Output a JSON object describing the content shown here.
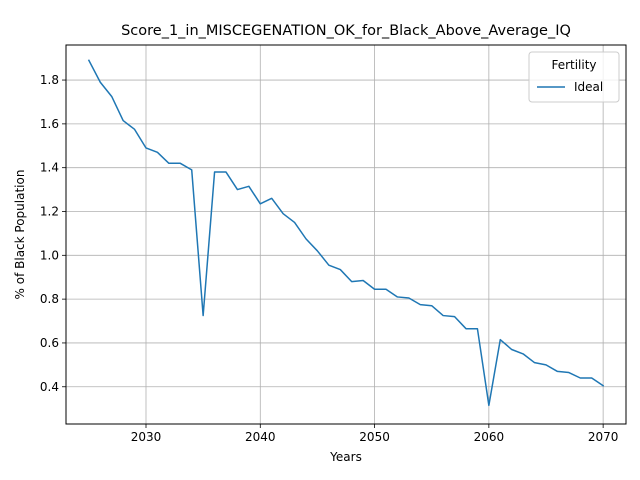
{
  "chart_data": {
    "type": "line",
    "title": "Score_1_in_MISCEGENATION_OK_for_Black_Above_Average_IQ",
    "xlabel": "Years",
    "ylabel": "% of Black Population",
    "xlim": [
      2023,
      2072
    ],
    "ylim": [
      0.23,
      1.96
    ],
    "x_ticks": [
      2030,
      2040,
      2050,
      2060,
      2070
    ],
    "y_ticks": [
      0.4,
      0.6,
      0.8,
      1.0,
      1.2,
      1.4,
      1.6,
      1.8
    ],
    "grid": true,
    "legend": {
      "title": "Fertility",
      "placement": "top-right"
    },
    "series_color": "#1f77b4",
    "x": [
      2025,
      2026,
      2027,
      2028,
      2029,
      2030,
      2031,
      2032,
      2033,
      2034,
      2035,
      2036,
      2037,
      2038,
      2039,
      2040,
      2041,
      2042,
      2043,
      2044,
      2045,
      2046,
      2047,
      2048,
      2049,
      2050,
      2051,
      2052,
      2053,
      2054,
      2055,
      2056,
      2057,
      2058,
      2059,
      2060,
      2061,
      2062,
      2063,
      2064,
      2065,
      2066,
      2067,
      2068,
      2069,
      2070
    ],
    "series": [
      {
        "name": "Ideal",
        "values": [
          1.89,
          1.79,
          1.725,
          1.615,
          1.575,
          1.49,
          1.47,
          1.42,
          1.42,
          1.39,
          0.725,
          1.38,
          1.38,
          1.3,
          1.315,
          1.235,
          1.26,
          1.19,
          1.15,
          1.075,
          1.02,
          0.955,
          0.935,
          0.88,
          0.885,
          0.845,
          0.845,
          0.81,
          0.805,
          0.775,
          0.77,
          0.725,
          0.72,
          0.665,
          0.665,
          0.315,
          0.615,
          0.57,
          0.55,
          0.51,
          0.5,
          0.47,
          0.465,
          0.44,
          0.44,
          0.405
        ]
      }
    ]
  }
}
